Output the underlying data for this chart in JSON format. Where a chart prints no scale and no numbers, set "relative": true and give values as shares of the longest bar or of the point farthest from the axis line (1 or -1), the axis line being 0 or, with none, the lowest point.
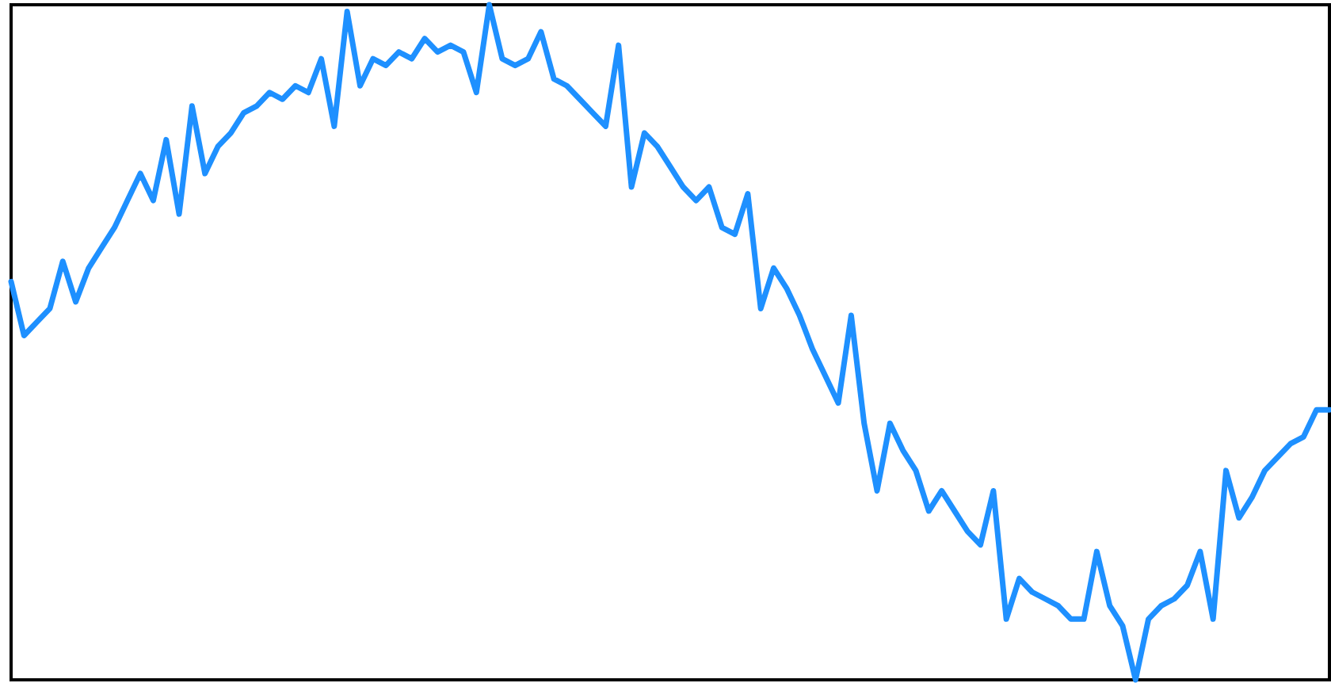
{
  "chart_data": {
    "type": "line",
    "relative": true,
    "categories": [
      null,
      null,
      null,
      null,
      null,
      null,
      null,
      null,
      null,
      null,
      null,
      null,
      null,
      null,
      null,
      null,
      null,
      null,
      null,
      null,
      null,
      null,
      null,
      null,
      null,
      null,
      null,
      null,
      null,
      null,
      null,
      null,
      null,
      null,
      null,
      null,
      null,
      null,
      null,
      null,
      null,
      null,
      null,
      null,
      null,
      null,
      null,
      null,
      null,
      null,
      null,
      null,
      null,
      null,
      null,
      null,
      null,
      null,
      null,
      null,
      null,
      null,
      null,
      null,
      null,
      null,
      null,
      null,
      null,
      null,
      null,
      null,
      null,
      null,
      null,
      null,
      null,
      null,
      null,
      null,
      null,
      null,
      null,
      null,
      null,
      null,
      null,
      null,
      null,
      null,
      null,
      null,
      null,
      null,
      null,
      null,
      null,
      null,
      null,
      null,
      null,
      null,
      null
    ],
    "series": [
      {
        "color": "#1e90ff",
        "values": [
          0.59,
          0.51,
          0.53,
          0.55,
          0.62,
          0.56,
          0.61,
          0.64,
          0.67,
          0.71,
          0.75,
          0.71,
          0.8,
          0.69,
          0.85,
          0.75,
          0.79,
          0.81,
          0.84,
          0.85,
          0.87,
          0.86,
          0.88,
          0.87,
          0.92,
          0.82,
          0.99,
          0.88,
          0.92,
          0.91,
          0.93,
          0.92,
          0.95,
          0.93,
          0.94,
          0.93,
          0.87,
          1,
          0.92,
          0.91,
          0.92,
          0.96,
          0.89,
          0.88,
          0.86,
          0.84,
          0.82,
          0.94,
          0.73,
          0.81,
          0.79,
          0.76,
          0.73,
          0.71,
          0.73,
          0.67,
          0.66,
          0.72,
          0.55,
          0.61,
          0.58,
          0.54,
          0.49,
          0.45,
          0.41,
          0.54,
          0.38,
          0.28,
          0.38,
          0.34,
          0.31,
          0.25,
          0.28,
          0.25,
          0.22,
          0.2,
          0.28,
          0.09,
          0.15,
          0.13,
          0.12,
          0.11,
          0.09,
          0.09,
          0.19,
          0.11,
          0.08,
          0,
          0.09,
          0.11,
          0.12,
          0.14,
          0.19,
          0.09,
          0.31,
          0.24,
          0.27,
          0.31,
          0.33,
          0.35,
          0.36,
          0.4,
          0.4
        ]
      }
    ]
  }
}
